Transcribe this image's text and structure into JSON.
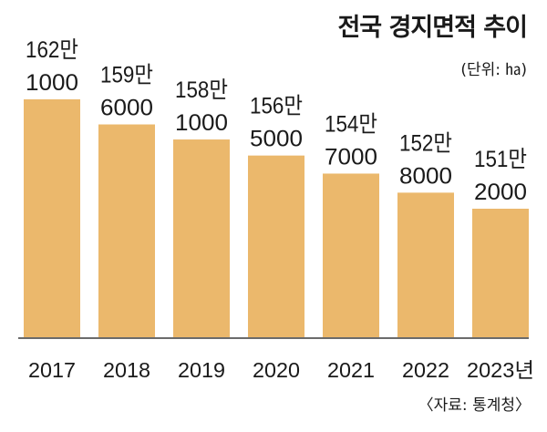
{
  "chart_data": {
    "type": "bar",
    "title": "전국 경지면적 추이",
    "unit_label": "(단위: ㏊)",
    "source": "〈자료: 통계청〉",
    "categories": [
      "2017",
      "2018",
      "2019",
      "2020",
      "2021",
      "2022",
      "2023년"
    ],
    "values": [
      1621000,
      1596000,
      1581000,
      1565000,
      1547000,
      1528000,
      1512000
    ],
    "value_labels": [
      [
        "162만",
        "1000"
      ],
      [
        "159만",
        "6000"
      ],
      [
        "158만",
        "1000"
      ],
      [
        "156만",
        "5000"
      ],
      [
        "154만",
        "7000"
      ],
      [
        "152만",
        "8000"
      ],
      [
        "151만",
        "2000"
      ]
    ],
    "bar_color": "#ebb86c",
    "grid": false,
    "legend": "none"
  }
}
